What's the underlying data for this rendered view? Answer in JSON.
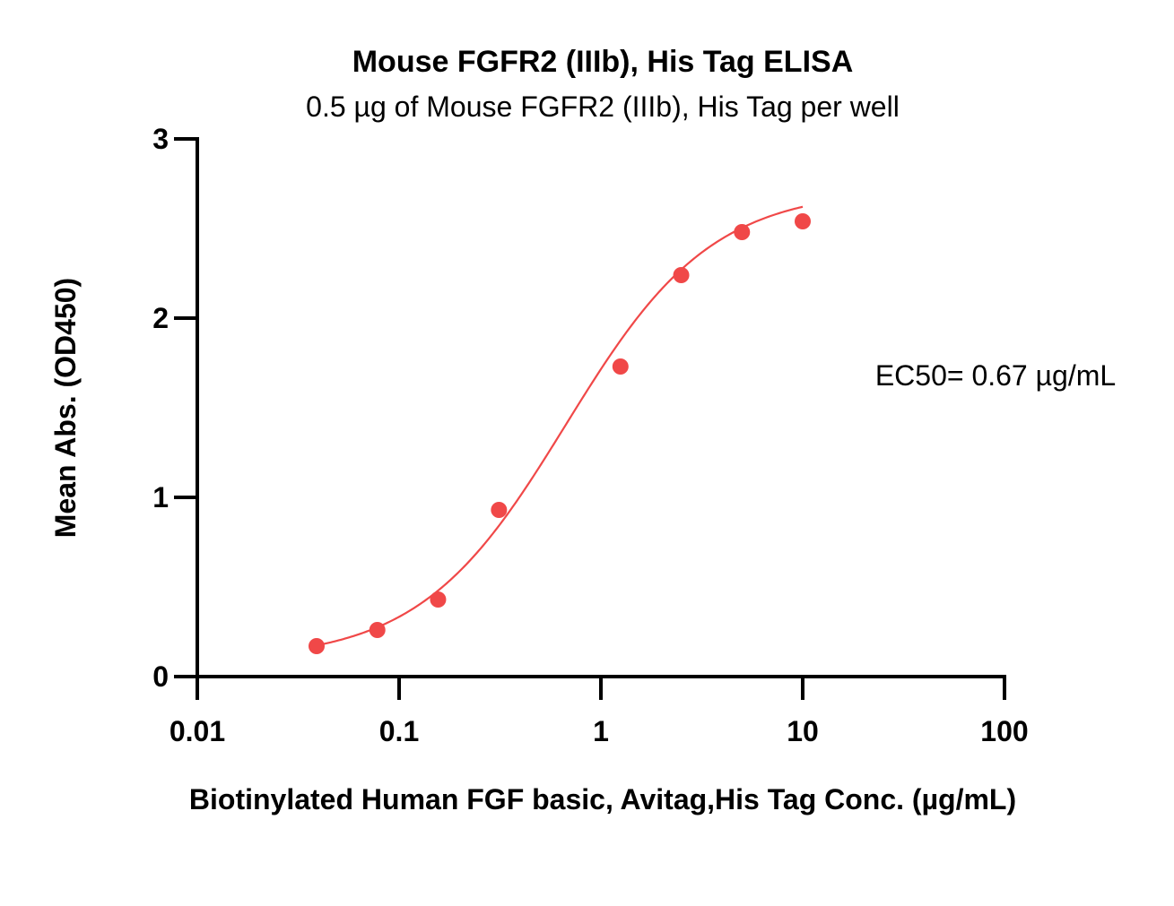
{
  "chart_data": {
    "type": "scatter",
    "title": "Mouse FGFR2 (IIIb), His Tag ELISA",
    "subtitle": "0.5 µg of Mouse FGFR2 (IIIb), His Tag per well",
    "xlabel": "Biotinylated Human FGF basic, Avitag,His Tag Conc. (µg/mL)",
    "ylabel": "Mean Abs. (OD450)",
    "xscale": "log",
    "xlim": [
      0.01,
      100
    ],
    "ylim": [
      0,
      3
    ],
    "x_ticks": [
      0.01,
      0.1,
      1,
      10,
      100
    ],
    "x_tick_labels": [
      "0.01",
      "0.1",
      "1",
      "10",
      "100"
    ],
    "y_ticks": [
      0,
      1,
      2,
      3
    ],
    "y_tick_labels": [
      "0",
      "1",
      "2",
      "3"
    ],
    "grid": false,
    "annotation": "EC50= 0.67 µg/mL",
    "color": "#f04848",
    "series": [
      {
        "x": [
          0.039,
          0.078,
          0.156,
          0.3125,
          1.25,
          2.5,
          5,
          10
        ],
        "y": [
          0.17,
          0.26,
          0.43,
          0.93,
          1.73,
          2.24,
          2.48,
          2.54
        ]
      }
    ],
    "fit_curve": {
      "model": "4PL",
      "bottom": 0.09,
      "top": 2.72,
      "ec50": 0.67,
      "hill": 1.2
    }
  }
}
